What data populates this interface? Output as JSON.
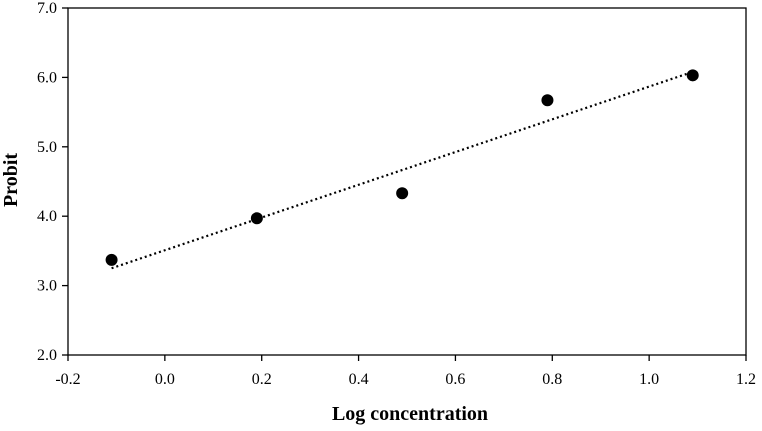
{
  "chart_data": {
    "type": "scatter",
    "title": "",
    "xlabel": "Log concentration",
    "ylabel": "Probit",
    "xlim": [
      -0.2,
      1.2
    ],
    "ylim": [
      2.0,
      7.0
    ],
    "x_ticks": [
      "-0.2",
      "0.0",
      "0.2",
      "0.4",
      "0.6",
      "0.8",
      "1.0",
      "1.2"
    ],
    "y_ticks": [
      "2.0",
      "3.0",
      "4.0",
      "5.0",
      "6.0",
      "7.0"
    ],
    "x_tick_values": [
      -0.2,
      0.0,
      0.2,
      0.4,
      0.6,
      0.8,
      1.0,
      1.2
    ],
    "y_tick_values": [
      2.0,
      3.0,
      4.0,
      5.0,
      6.0,
      7.0
    ],
    "points": [
      {
        "x": -0.11,
        "y": 3.37
      },
      {
        "x": 0.19,
        "y": 3.97
      },
      {
        "x": 0.49,
        "y": 4.33
      },
      {
        "x": 0.79,
        "y": 5.67
      },
      {
        "x": 1.09,
        "y": 6.03
      }
    ],
    "trendline": {
      "style": "dotted",
      "x": [
        -0.11,
        1.09
      ],
      "y": [
        3.25,
        6.08
      ]
    },
    "grid": false,
    "legend": "none",
    "colors": {
      "marker": "#000000",
      "trendline": "#000000"
    }
  }
}
